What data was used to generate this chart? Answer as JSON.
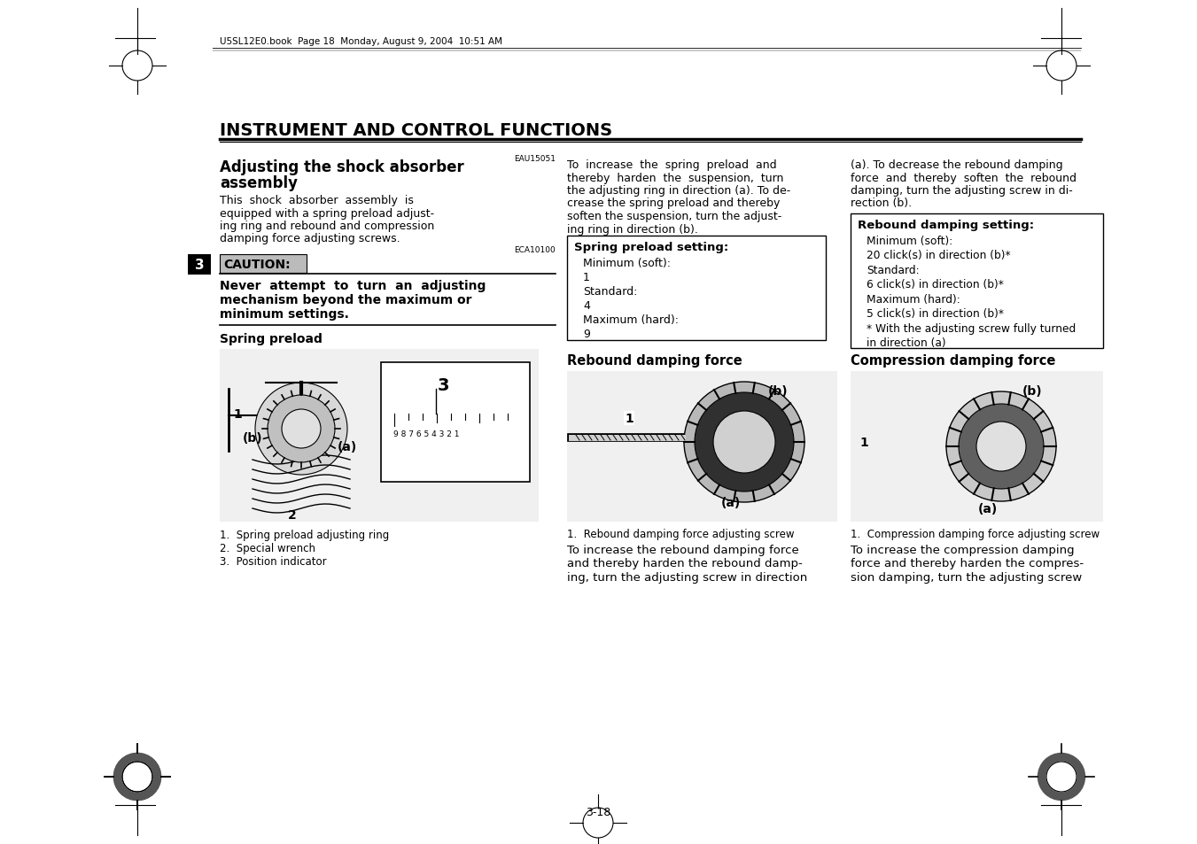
{
  "page_bg": "#ffffff",
  "title": "INSTRUMENT AND CONTROL FUNCTIONS",
  "header_text": "U5SL12E0.book  Page 18  Monday, August 9, 2004  10:51 AM",
  "section_code": "EAU15051",
  "section_title_line1": "Adjusting the shock absorber",
  "section_title_line2": "assembly",
  "section_body": "This  shock  absorber  assembly  is\nequipped with a spring preload adjust-\ning ring and rebound and compression\ndamping force adjusting screws.",
  "caution_code": "ECA10100",
  "caution_label": "CAUTION:",
  "caution_body_bold": "Never  attempt  to  turn  an  adjusting\nmechanism beyond the maximum or\nminimum settings.",
  "col2_para1_line1": "To  increase  the  spring  preload  and",
  "col2_para1_line2": "thereby  harden  the  suspension,  turn",
  "col2_para1_line3": "the adjusting ring in direction (a). To de-",
  "col2_para1_line4": "crease the spring preload and thereby",
  "col2_para1_line5": "soften the suspension, turn the adjust-",
  "col2_para1_line6": "ing ring in direction (b).",
  "col3_para1_line1": "(a). To decrease the rebound damping",
  "col3_para1_line2": "force  and  thereby  soften  the  rebound",
  "col3_para1_line3": "damping, turn the adjusting screw in di-",
  "col3_para1_line4": "rection (b).",
  "spring_box_title": "Spring preload setting:",
  "spring_box_lines": [
    "Minimum (soft):",
    "    1",
    "Standard:",
    "    4",
    "Maximum (hard):",
    "    9"
  ],
  "rebound_box_title": "Rebound damping setting:",
  "rebound_box_lines": [
    "Minimum (soft):",
    "    20 click(s) in direction (b)*",
    "Standard:",
    "    6 click(s) in direction (b)*",
    "Maximum (hard):",
    "    5 click(s) in direction (b)*",
    "* With the adjusting screw fully turned",
    "  in direction (a)"
  ],
  "spring_preload_label": "Spring preload",
  "spring_legend": [
    "1.  Spring preload adjusting ring",
    "2.  Special wrench",
    "3.  Position indicator"
  ],
  "rebound_label": "Rebound damping force",
  "rebound_legend": "1.  Rebound damping force adjusting screw",
  "rebound_para_line1": "To increase the rebound damping force",
  "rebound_para_line2": "and thereby harden the rebound damp-",
  "rebound_para_line3": "ing, turn the adjusting screw in direction",
  "compression_label": "Compression damping force",
  "compression_legend": "1.  Compression damping force adjusting screw",
  "compression_para_line1": "To increase the compression damping",
  "compression_para_line2": "force and thereby harden the compres-",
  "compression_para_line3": "sion damping, turn the adjusting screw",
  "page_number": "3-18",
  "chapter_num": "3",
  "caution_bg": "#bbbbbb",
  "chapter_bg": "#000000",
  "chapter_fg": "#ffffff",
  "img_bg": "#e8e8e8"
}
